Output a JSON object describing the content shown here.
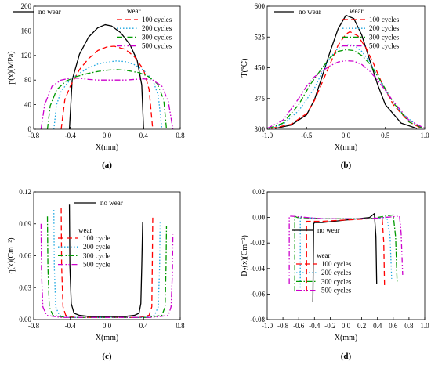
{
  "chart_data": [
    {
      "type": "line",
      "caption": "(a)",
      "xlabel": "X(mm)",
      "ylabel": "p(x)(MPa)",
      "xlim": [
        -0.8,
        0.8
      ],
      "ylim": [
        0,
        200
      ],
      "xticks": [
        "-0.8",
        "-0.4",
        "0.0",
        "0.4",
        "0.8"
      ],
      "yticks": [
        "0",
        "40",
        "80",
        "120",
        "160",
        "200"
      ],
      "legend": {
        "placement": "top",
        "group_title": "wear",
        "base_entry": "no wear",
        "entries": [
          "100 cycles",
          "200 cycles",
          "300 cycles",
          "500 cycles"
        ]
      },
      "series": [
        {
          "name": "no wear",
          "color": "#000000",
          "dash": "none",
          "x": [
            -0.41,
            -0.38,
            -0.3,
            -0.2,
            -0.1,
            -0.02,
            0.05,
            0.15,
            0.25,
            0.33,
            0.38,
            0.4
          ],
          "y": [
            0,
            80,
            122,
            150,
            165,
            170,
            168,
            157,
            138,
            112,
            72,
            0
          ]
        },
        {
          "name": "100 cycles",
          "color": "#ff0000",
          "dash": "7,4",
          "x": [
            -0.5,
            -0.46,
            -0.4,
            -0.3,
            -0.2,
            -0.1,
            0.0,
            0.08,
            0.2,
            0.3,
            0.4,
            0.46,
            0.5
          ],
          "y": [
            0,
            48,
            70,
            97,
            115,
            128,
            134,
            135,
            130,
            118,
            97,
            65,
            0
          ]
        },
        {
          "name": "200 cycles",
          "color": "#1ba6e0",
          "dash": "1.5,2.5",
          "x": [
            -0.58,
            -0.55,
            -0.5,
            -0.4,
            -0.3,
            -0.2,
            -0.1,
            0.0,
            0.1,
            0.2,
            0.3,
            0.4,
            0.5,
            0.56,
            0.6
          ],
          "y": [
            0,
            40,
            62,
            81,
            91,
            100,
            106,
            109,
            111,
            110,
            105,
            96,
            80,
            55,
            0
          ]
        },
        {
          "name": "300 cycles",
          "color": "#009900",
          "dash": "7,2.5,1.5,2.5",
          "x": [
            -0.65,
            -0.62,
            -0.55,
            -0.45,
            -0.35,
            -0.2,
            -0.1,
            0.0,
            0.1,
            0.2,
            0.35,
            0.45,
            0.55,
            0.62,
            0.65
          ],
          "y": [
            0,
            38,
            64,
            78,
            85,
            91,
            94,
            96,
            97,
            96,
            92,
            86,
            74,
            48,
            0
          ]
        },
        {
          "name": "500 cycles",
          "color": "#cc00cc",
          "dash": "7,2.5,1.5,2.5,1.5,2.5",
          "x": [
            -0.72,
            -0.68,
            -0.6,
            -0.5,
            -0.4,
            -0.3,
            -0.2,
            -0.1,
            0.0,
            0.1,
            0.2,
            0.3,
            0.4,
            0.5,
            0.6,
            0.67,
            0.72
          ],
          "y": [
            0,
            40,
            70,
            80,
            83,
            83,
            81,
            80,
            80,
            80,
            80,
            81,
            82,
            80,
            70,
            45,
            0
          ]
        }
      ]
    },
    {
      "type": "line",
      "caption": "(b)",
      "xlabel": "X(mm)",
      "ylabel": "T(℃)",
      "xlim": [
        -1.0,
        1.0
      ],
      "ylim": [
        300,
        600
      ],
      "xticks": [
        "-1.0",
        "-0.5",
        "0.0",
        "0.5",
        "1.0"
      ],
      "yticks": [
        "300",
        "375",
        "450",
        "525",
        "600"
      ],
      "legend": {
        "placement": "top",
        "group_title": "wear",
        "base_entry": "no wear",
        "entries": [
          "100 cycles",
          "200 cycles",
          "300 cycles",
          "500 cycles"
        ]
      },
      "series": [
        {
          "name": "no wear",
          "color": "#000000",
          "dash": "none",
          "x": [
            -0.9,
            -0.7,
            -0.5,
            -0.4,
            -0.3,
            -0.2,
            -0.1,
            0.0,
            0.1,
            0.2,
            0.3,
            0.4,
            0.5,
            0.7,
            0.9
          ],
          "y": [
            302,
            310,
            335,
            372,
            430,
            490,
            545,
            578,
            570,
            530,
            470,
            410,
            360,
            315,
            302
          ]
        },
        {
          "name": "100 cycles",
          "color": "#ff0000",
          "dash": "7,4",
          "x": [
            -0.95,
            -0.7,
            -0.5,
            -0.4,
            -0.3,
            -0.2,
            -0.1,
            0.0,
            0.05,
            0.15,
            0.25,
            0.35,
            0.45,
            0.6,
            0.8,
            0.95
          ],
          "y": [
            302,
            312,
            338,
            370,
            415,
            460,
            505,
            532,
            538,
            528,
            500,
            460,
            415,
            360,
            318,
            303
          ]
        },
        {
          "name": "200 cycles",
          "color": "#1ba6e0",
          "dash": "1.5,2.5",
          "x": [
            -0.97,
            -0.8,
            -0.6,
            -0.4,
            -0.3,
            -0.2,
            -0.1,
            0.0,
            0.1,
            0.2,
            0.3,
            0.4,
            0.5,
            0.7,
            0.9,
            0.97
          ],
          "y": [
            302,
            312,
            345,
            400,
            440,
            475,
            498,
            506,
            505,
            490,
            465,
            430,
            395,
            340,
            310,
            302
          ]
        },
        {
          "name": "300 cycles",
          "color": "#009900",
          "dash": "7,2.5,1.5,2.5",
          "x": [
            -0.98,
            -0.8,
            -0.6,
            -0.45,
            -0.3,
            -0.2,
            -0.1,
            0.0,
            0.1,
            0.2,
            0.3,
            0.45,
            0.6,
            0.8,
            0.98
          ],
          "y": [
            302,
            315,
            360,
            410,
            450,
            475,
            490,
            494,
            492,
            480,
            460,
            415,
            365,
            318,
            302
          ]
        },
        {
          "name": "500 cycles",
          "color": "#cc00cc",
          "dash": "7,2.5,1.5,2.5,1.5,2.5",
          "x": [
            -1.0,
            -0.8,
            -0.6,
            -0.5,
            -0.4,
            -0.3,
            -0.2,
            -0.1,
            0.0,
            0.1,
            0.2,
            0.3,
            0.4,
            0.5,
            0.6,
            0.8,
            1.0
          ],
          "y": [
            302,
            322,
            375,
            405,
            428,
            442,
            455,
            464,
            467,
            466,
            458,
            442,
            420,
            395,
            368,
            322,
            302
          ]
        }
      ]
    },
    {
      "type": "line",
      "caption": "(c)",
      "xlabel": "X(mm)",
      "ylabel": "q(x)(Cm⁻²)",
      "xlim": [
        -0.8,
        0.8
      ],
      "ylim": [
        0,
        0.12
      ],
      "xticks": [
        "-0.8",
        "-0.4",
        "0.0",
        "0.4",
        "0.8"
      ],
      "yticks": [
        "0.00",
        "0.03",
        "0.06",
        "0.09",
        "0.12"
      ],
      "legend": {
        "placement": "left",
        "group_title": "wear",
        "base_entry": "no wear",
        "entries": [
          "100 cycle",
          "200 cycle",
          "300 cycle",
          "500 cycle"
        ]
      },
      "series": [
        {
          "name": "no wear",
          "color": "#000000",
          "dash": "none",
          "x": [
            -0.41,
            -0.405,
            -0.39,
            -0.36,
            -0.3,
            -0.2,
            0.0,
            0.2,
            0.3,
            0.35,
            0.37,
            0.38,
            0.39
          ],
          "y": [
            0.108,
            0.05,
            0.015,
            0.006,
            0.004,
            0.003,
            0.003,
            0.003,
            0.004,
            0.006,
            0.015,
            0.05,
            0.092
          ]
        },
        {
          "name": "100 cycles",
          "color": "#ff0000",
          "dash": "7,4",
          "x": [
            -0.5,
            -0.495,
            -0.48,
            -0.45,
            -0.35,
            0.0,
            0.35,
            0.46,
            0.49,
            0.495,
            0.5
          ],
          "y": [
            0.105,
            0.05,
            0.012,
            0.004,
            0.002,
            0.002,
            0.002,
            0.004,
            0.012,
            0.05,
            0.096
          ]
        },
        {
          "name": "200 cycles",
          "color": "#1ba6e0",
          "dash": "1.5,2.5",
          "x": [
            -0.58,
            -0.575,
            -0.56,
            -0.52,
            -0.4,
            0.0,
            0.4,
            0.52,
            0.56,
            0.575,
            0.58
          ],
          "y": [
            0.103,
            0.05,
            0.012,
            0.004,
            0.002,
            0.002,
            0.002,
            0.004,
            0.012,
            0.05,
            0.091
          ]
        },
        {
          "name": "300 cycles",
          "color": "#009900",
          "dash": "7,2.5,1.5,2.5",
          "x": [
            -0.65,
            -0.645,
            -0.63,
            -0.59,
            -0.45,
            0.0,
            0.45,
            0.6,
            0.635,
            0.645,
            0.65
          ],
          "y": [
            0.097,
            0.05,
            0.012,
            0.004,
            0.002,
            0.002,
            0.002,
            0.004,
            0.012,
            0.05,
            0.088
          ]
        },
        {
          "name": "500 cycles",
          "color": "#cc00cc",
          "dash": "7,2.5,1.5,2.5,1.5,2.5",
          "x": [
            -0.72,
            -0.715,
            -0.7,
            -0.66,
            -0.5,
            0.0,
            0.5,
            0.67,
            0.7,
            0.715,
            0.72
          ],
          "y": [
            0.09,
            0.045,
            0.012,
            0.004,
            0.002,
            0.002,
            0.002,
            0.004,
            0.012,
            0.045,
            0.08
          ]
        }
      ]
    },
    {
      "type": "line",
      "caption": "(d)",
      "xlabel": "X(mm)",
      "ylabel": "D_Z(x)(Cm⁻²)",
      "xlim": [
        -1.0,
        1.0
      ],
      "ylim": [
        -0.08,
        0.02
      ],
      "xticks": [
        "-1.0",
        "-0.8",
        "-0.6",
        "-0.4",
        "-0.2",
        "0.0",
        "0.2",
        "0.4",
        "0.6",
        "0.8",
        "1.0"
      ],
      "yticks": [
        "-0.08",
        "-0.06",
        "-0.04",
        "-0.02",
        "0.00",
        "0.02"
      ],
      "legend": {
        "placement": "bottom-center",
        "group_title": "wear",
        "base_entry": "no wear",
        "entries": [
          "100 cycles",
          "200 cycles",
          "300 cycles",
          "500 cycles"
        ]
      },
      "series": [
        {
          "name": "no wear",
          "color": "#000000",
          "dash": "none",
          "x": [
            -0.42,
            -0.41,
            -0.4,
            -0.3,
            0.0,
            0.3,
            0.36,
            0.38,
            0.39
          ],
          "y": [
            -0.066,
            -0.005,
            -0.004,
            -0.004,
            -0.002,
            0.0,
            0.003,
            -0.015,
            -0.052
          ]
        },
        {
          "name": "100 cycles",
          "color": "#ff0000",
          "dash": "7,4",
          "x": [
            -0.5,
            -0.5,
            -0.48,
            -0.3,
            0.0,
            0.3,
            0.46,
            0.48,
            0.49
          ],
          "y": [
            -0.058,
            -0.003,
            -0.003,
            -0.003,
            -0.002,
            -0.001,
            -0.001,
            -0.02,
            -0.055
          ]
        },
        {
          "name": "200 cycles",
          "color": "#1ba6e0",
          "dash": "1.5,2.5",
          "x": [
            -0.58,
            -0.58,
            -0.55,
            -0.3,
            0.0,
            0.3,
            0.52,
            0.56,
            0.58
          ],
          "y": [
            -0.055,
            0.001,
            0.0,
            -0.001,
            -0.001,
            -0.001,
            0.0,
            -0.015,
            -0.048
          ]
        },
        {
          "name": "300 cycles",
          "color": "#009900",
          "dash": "7,2.5,1.5,2.5",
          "x": [
            -0.65,
            -0.65,
            -0.62,
            -0.3,
            0.0,
            0.3,
            0.6,
            0.63,
            0.65
          ],
          "y": [
            -0.058,
            0.001,
            0.0,
            -0.001,
            -0.001,
            -0.001,
            0.002,
            -0.015,
            -0.052
          ]
        },
        {
          "name": "500 cycles",
          "color": "#cc00cc",
          "dash": "7,2.5,1.5,2.5,1.5,2.5",
          "x": [
            -0.72,
            -0.72,
            -0.69,
            -0.3,
            0.0,
            0.3,
            0.68,
            0.7,
            0.72
          ],
          "y": [
            -0.052,
            0.001,
            0.001,
            -0.001,
            -0.001,
            -0.001,
            0.001,
            -0.012,
            -0.045
          ]
        }
      ]
    }
  ]
}
